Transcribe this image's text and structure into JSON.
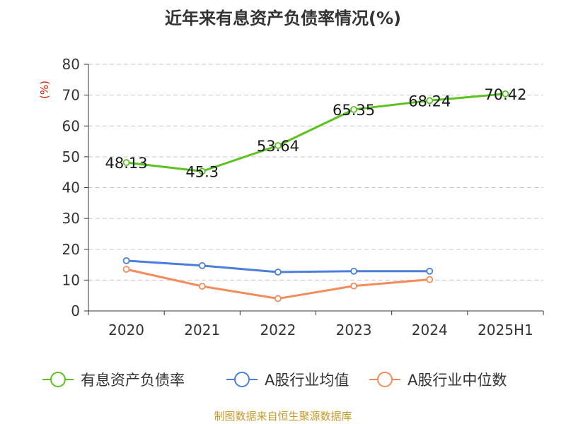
{
  "colors": {
    "debt_ratio": "#5bc21f",
    "industry_avg": "#4a7fdc",
    "industry_median": "#f58b5a",
    "grid": "#c8c8c8",
    "axis": "#333333",
    "unit": "#d81e06",
    "source": "#c79a2b"
  },
  "footer": {
    "source": "制图数据来自恒生聚源数据库"
  },
  "chart_data": {
    "type": "line",
    "title": "近年来有息资产负债率情况(%)",
    "ylabel": "(%)",
    "xlabel": "",
    "categories": [
      "2020",
      "2021",
      "2022",
      "2023",
      "2024",
      "2025H1"
    ],
    "ylim": [
      0,
      80
    ],
    "yticks": [
      0,
      10,
      20,
      30,
      40,
      50,
      60,
      70,
      80
    ],
    "ytick_labels": [
      "0",
      "10",
      "20",
      "30",
      "40",
      "50",
      "60",
      "70",
      "80"
    ],
    "grid": true,
    "legend_position": "bottom",
    "series": [
      {
        "name": "有息资产负债率",
        "color_key": "debt_ratio",
        "values": [
          48.13,
          45.3,
          53.64,
          65.35,
          68.24,
          70.42
        ],
        "labels": [
          "48.13",
          "45.3",
          "53.64",
          "65.35",
          "68.24",
          "70.42"
        ]
      },
      {
        "name": "A股行业均值",
        "color_key": "industry_avg",
        "values": [
          16.3,
          14.7,
          12.6,
          12.9,
          12.9,
          null
        ]
      },
      {
        "name": "A股行业中位数",
        "color_key": "industry_median",
        "values": [
          13.5,
          8.0,
          4.0,
          8.1,
          10.2,
          null
        ]
      }
    ]
  }
}
